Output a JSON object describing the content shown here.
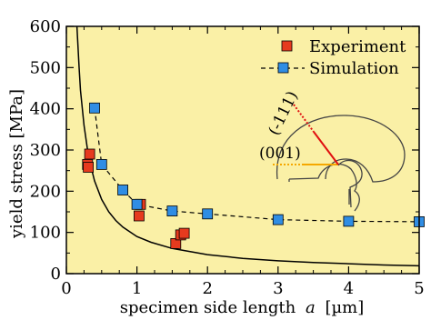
{
  "chart_data": {
    "type": "scatter",
    "xlabel": "specimen side length",
    "xlabel_var": "a",
    "xlabel_unit": "[µm]",
    "ylabel": "yield stress  [MPa]",
    "xlim": [
      0,
      5
    ],
    "ylim": [
      0,
      600
    ],
    "x_ticks": [
      0,
      1,
      2,
      3,
      4,
      5
    ],
    "y_ticks": [
      0,
      100,
      200,
      300,
      400,
      500,
      600
    ],
    "background_color": "#faf0a6",
    "legend_position": "top-right",
    "series": [
      {
        "name": "Experiment",
        "marker": "square",
        "color": "#e63a1e",
        "line": "none",
        "points": [
          {
            "x": 0.3,
            "y": 265
          },
          {
            "x": 0.31,
            "y": 258
          },
          {
            "x": 0.33,
            "y": 290
          },
          {
            "x": 1.03,
            "y": 140
          },
          {
            "x": 1.05,
            "y": 168
          },
          {
            "x": 1.55,
            "y": 73
          },
          {
            "x": 1.62,
            "y": 94
          },
          {
            "x": 1.67,
            "y": 98
          }
        ]
      },
      {
        "name": "Simulation",
        "marker": "square",
        "color": "#2f8de4",
        "line": "dashed",
        "points": [
          {
            "x": 0.4,
            "y": 402
          },
          {
            "x": 0.5,
            "y": 265
          },
          {
            "x": 0.8,
            "y": 203
          },
          {
            "x": 1.0,
            "y": 168
          },
          {
            "x": 1.5,
            "y": 152
          },
          {
            "x": 2.0,
            "y": 145
          },
          {
            "x": 3.0,
            "y": 131
          },
          {
            "x": 4.0,
            "y": 127
          },
          {
            "x": 5.0,
            "y": 126
          }
        ]
      }
    ],
    "fit_curve": {
      "style": "solid",
      "color": "#000000",
      "x": [
        0.15,
        0.18,
        0.2,
        0.25,
        0.3,
        0.35,
        0.4,
        0.5,
        0.6,
        0.7,
        0.8,
        1.0,
        1.2,
        1.5,
        2.0,
        2.5,
        3.0,
        3.5,
        4.0,
        4.5,
        5.0
      ],
      "y": [
        600,
        500,
        445,
        360,
        300,
        258,
        225,
        180,
        150,
        129,
        113,
        90,
        76,
        61,
        46,
        37,
        31,
        27,
        24,
        21,
        19
      ]
    },
    "annotations": [
      {
        "text": "(001)",
        "color": "#f5a800"
      },
      {
        "text": "(-111)",
        "color": "#e01010"
      }
    ]
  }
}
